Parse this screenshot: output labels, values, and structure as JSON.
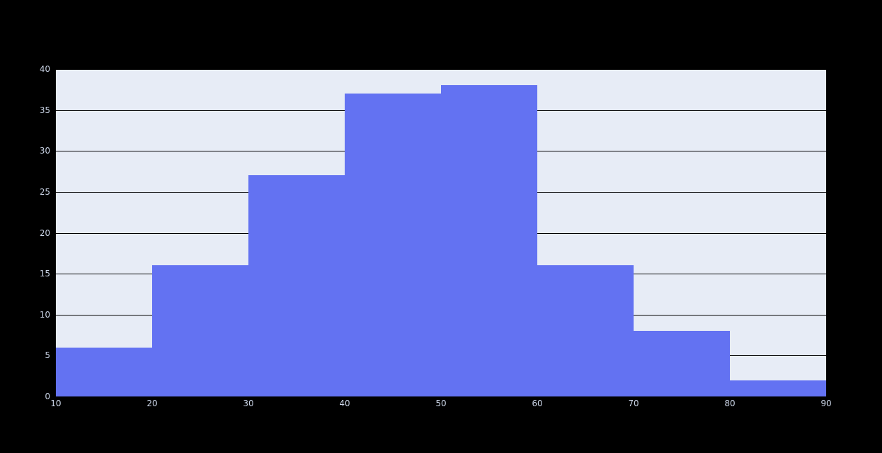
{
  "chart_data": {
    "type": "bar",
    "subtype": "histogram",
    "title": "",
    "xlabel": "",
    "ylabel": "",
    "bin_edges": [
      10,
      20,
      30,
      40,
      50,
      60,
      70,
      80,
      90
    ],
    "values": [
      6,
      16,
      27,
      37,
      38,
      16,
      8,
      2
    ],
    "x_tick_labels": [
      "10",
      "20",
      "30",
      "40",
      "50",
      "60",
      "70",
      "80",
      "90"
    ],
    "x_tick_values": [
      10,
      20,
      30,
      40,
      50,
      60,
      70,
      80,
      90
    ],
    "y_tick_labels": [
      "0",
      "5",
      "10",
      "15",
      "20",
      "25",
      "30",
      "35",
      "40"
    ],
    "y_tick_values": [
      0,
      5,
      10,
      15,
      20,
      25,
      30,
      35,
      40
    ],
    "xlim": [
      10,
      90
    ],
    "ylim": [
      0,
      40
    ],
    "grid": "horizontal-only",
    "gridlines_behind_bars": true,
    "legend": "none",
    "colors": {
      "figure_background": "#000000",
      "plot_background": "#e7ecf6",
      "bar_fill": "#6372f2",
      "gridline": "#000000",
      "tick_label": "#ccd6e8"
    }
  }
}
